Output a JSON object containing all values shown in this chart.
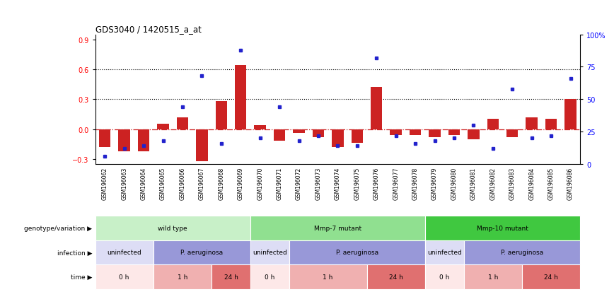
{
  "title": "GDS3040 / 1420515_a_at",
  "samples": [
    "GSM196062",
    "GSM196063",
    "GSM196064",
    "GSM196065",
    "GSM196066",
    "GSM196067",
    "GSM196068",
    "GSM196069",
    "GSM196070",
    "GSM196071",
    "GSM196072",
    "GSM196073",
    "GSM196074",
    "GSM196075",
    "GSM196076",
    "GSM196077",
    "GSM196078",
    "GSM196079",
    "GSM196080",
    "GSM196081",
    "GSM196082",
    "GSM196083",
    "GSM196084",
    "GSM196085",
    "GSM196086"
  ],
  "red_bars": [
    -0.18,
    -0.22,
    -0.22,
    0.05,
    0.12,
    -0.32,
    0.28,
    0.64,
    0.04,
    -0.12,
    -0.04,
    -0.08,
    -0.18,
    -0.14,
    0.42,
    -0.06,
    -0.06,
    -0.08,
    -0.06,
    -0.1,
    0.1,
    -0.08,
    0.12,
    0.1,
    0.3
  ],
  "blue_dots_pct": [
    6,
    12,
    14,
    18,
    44,
    68,
    16,
    88,
    20,
    44,
    18,
    22,
    14,
    14,
    82,
    22,
    16,
    18,
    20,
    30,
    12,
    58,
    20,
    22,
    66
  ],
  "ylim": [
    -0.35,
    0.95
  ],
  "yticks_left": [
    -0.3,
    0.0,
    0.3,
    0.6,
    0.9
  ],
  "yticks_right_pct": [
    0,
    25,
    50,
    75,
    100
  ],
  "hlines": [
    0.3,
    0.6
  ],
  "genotype_groups": [
    {
      "label": "wild type",
      "start": 0,
      "end": 8,
      "color": "#c8f0c8"
    },
    {
      "label": "Mmp-7 mutant",
      "start": 8,
      "end": 17,
      "color": "#90e090"
    },
    {
      "label": "Mmp-10 mutant",
      "start": 17,
      "end": 25,
      "color": "#40c840"
    }
  ],
  "infection_groups": [
    {
      "label": "uninfected",
      "start": 0,
      "end": 3,
      "color": "#ddddf5"
    },
    {
      "label": "P. aeruginosa",
      "start": 3,
      "end": 8,
      "color": "#9898d8"
    },
    {
      "label": "uninfected",
      "start": 8,
      "end": 10,
      "color": "#ddddf5"
    },
    {
      "label": "P. aeruginosa",
      "start": 10,
      "end": 17,
      "color": "#9898d8"
    },
    {
      "label": "uninfected",
      "start": 17,
      "end": 19,
      "color": "#ddddf5"
    },
    {
      "label": "P. aeruginosa",
      "start": 19,
      "end": 25,
      "color": "#9898d8"
    }
  ],
  "time_groups": [
    {
      "label": "0 h",
      "start": 0,
      "end": 3,
      "color": "#fde8e8"
    },
    {
      "label": "1 h",
      "start": 3,
      "end": 6,
      "color": "#f0b0b0"
    },
    {
      "label": "24 h",
      "start": 6,
      "end": 8,
      "color": "#e07070"
    },
    {
      "label": "0 h",
      "start": 8,
      "end": 10,
      "color": "#fde8e8"
    },
    {
      "label": "1 h",
      "start": 10,
      "end": 14,
      "color": "#f0b0b0"
    },
    {
      "label": "24 h",
      "start": 14,
      "end": 17,
      "color": "#e07070"
    },
    {
      "label": "0 h",
      "start": 17,
      "end": 19,
      "color": "#fde8e8"
    },
    {
      "label": "1 h",
      "start": 19,
      "end": 22,
      "color": "#f0b0b0"
    },
    {
      "label": "24 h",
      "start": 22,
      "end": 25,
      "color": "#e07070"
    }
  ],
  "row_labels": [
    "genotype/variation",
    "infection",
    "time"
  ],
  "bar_color": "#cc2222",
  "dot_color": "#2222cc",
  "bg_color": "#ffffff",
  "label_bg": "#d8d8d8"
}
